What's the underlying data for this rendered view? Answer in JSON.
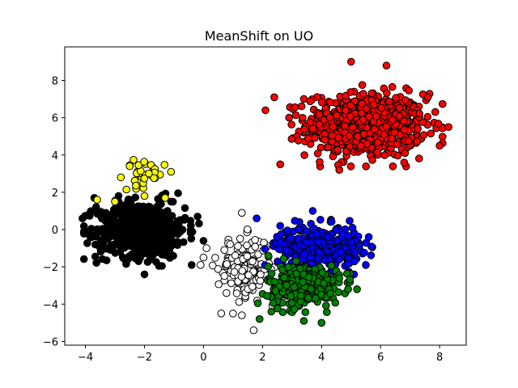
{
  "chart_data": {
    "type": "scatter",
    "title": "MeanShift on UO",
    "xlabel": "",
    "ylabel": "",
    "xlim": [
      -4.7,
      8.9
    ],
    "ylim": [
      -6.2,
      9.8
    ],
    "xticks": [
      -4,
      -2,
      0,
      2,
      4,
      6,
      8
    ],
    "yticks": [
      -6,
      -4,
      -2,
      0,
      2,
      4,
      6,
      8
    ],
    "grid": false,
    "legend": "none",
    "marker_edge_color": "#000000",
    "series": [
      {
        "name": "cluster-red",
        "color": "#ff0000",
        "center": [
          5.5,
          5.6
        ],
        "spread": [
          1.0,
          0.85
        ],
        "count": 700,
        "extremes": [
          [
            2.1,
            6.4
          ],
          [
            2.4,
            7.1
          ],
          [
            8.3,
            5.5
          ],
          [
            8.0,
            4.5
          ],
          [
            5.0,
            9.0
          ],
          [
            6.2,
            8.8
          ],
          [
            2.6,
            3.5
          ],
          [
            6.8,
            3.6
          ],
          [
            4.6,
            3.2
          ],
          [
            7.6,
            7.1
          ]
        ]
      },
      {
        "name": "cluster-black",
        "color": "#000000",
        "center": [
          -2.1,
          0.0
        ],
        "spread": [
          0.75,
          0.75
        ],
        "count": 600,
        "extremes": [
          [
            -4.1,
            0.6
          ],
          [
            -3.7,
            1.7
          ],
          [
            -0.2,
            0.7
          ],
          [
            0.0,
            -0.6
          ],
          [
            -2.0,
            -2.4
          ],
          [
            -0.4,
            -1.9
          ],
          [
            -3.5,
            -0.9
          ],
          [
            -1.1,
            1.5
          ]
        ]
      },
      {
        "name": "cluster-yellow",
        "color": "#ffff00",
        "center": [
          -2.0,
          3.0
        ],
        "spread": [
          0.35,
          0.35
        ],
        "count": 30,
        "extremes": [
          [
            -3.6,
            1.6
          ],
          [
            -2.5,
            3.4
          ],
          [
            -1.1,
            3.1
          ],
          [
            -2.8,
            2.8
          ],
          [
            -2.0,
            1.8
          ],
          [
            -1.3,
            1.7
          ],
          [
            -3.0,
            1.5
          ]
        ]
      },
      {
        "name": "cluster-white",
        "color": "#ffffff",
        "center": [
          1.4,
          -2.0
        ],
        "spread": [
          0.45,
          0.8
        ],
        "count": 160,
        "extremes": [
          [
            1.7,
            -5.4
          ],
          [
            0.6,
            -4.5
          ],
          [
            1.0,
            -4.5
          ],
          [
            1.3,
            0.9
          ],
          [
            0.1,
            -1.0
          ],
          [
            -0.1,
            -1.9
          ],
          [
            0.0,
            -1.5
          ],
          [
            1.3,
            -4.6
          ]
        ]
      },
      {
        "name": "cluster-blue",
        "color": "#0000ff",
        "center": [
          3.9,
          -0.9
        ],
        "spread": [
          0.7,
          0.55
        ],
        "count": 330,
        "extremes": [
          [
            1.8,
            0.6
          ],
          [
            3.7,
            1.0
          ],
          [
            5.6,
            -0.4
          ],
          [
            5.5,
            -1.9
          ],
          [
            4.6,
            -1.6
          ],
          [
            5.1,
            -2.4
          ],
          [
            2.6,
            0.2
          ]
        ]
      },
      {
        "name": "cluster-green",
        "color": "#008000",
        "center": [
          3.4,
          -3.0
        ],
        "spread": [
          0.6,
          0.55
        ],
        "count": 330,
        "extremes": [
          [
            2.3,
            -4.4
          ],
          [
            3.4,
            -4.9
          ],
          [
            4.0,
            -5.0
          ],
          [
            4.9,
            -3.2
          ],
          [
            4.6,
            -2.6
          ],
          [
            1.9,
            -4.8
          ],
          [
            2.2,
            -1.4
          ],
          [
            5.2,
            -3.2
          ]
        ]
      }
    ]
  }
}
